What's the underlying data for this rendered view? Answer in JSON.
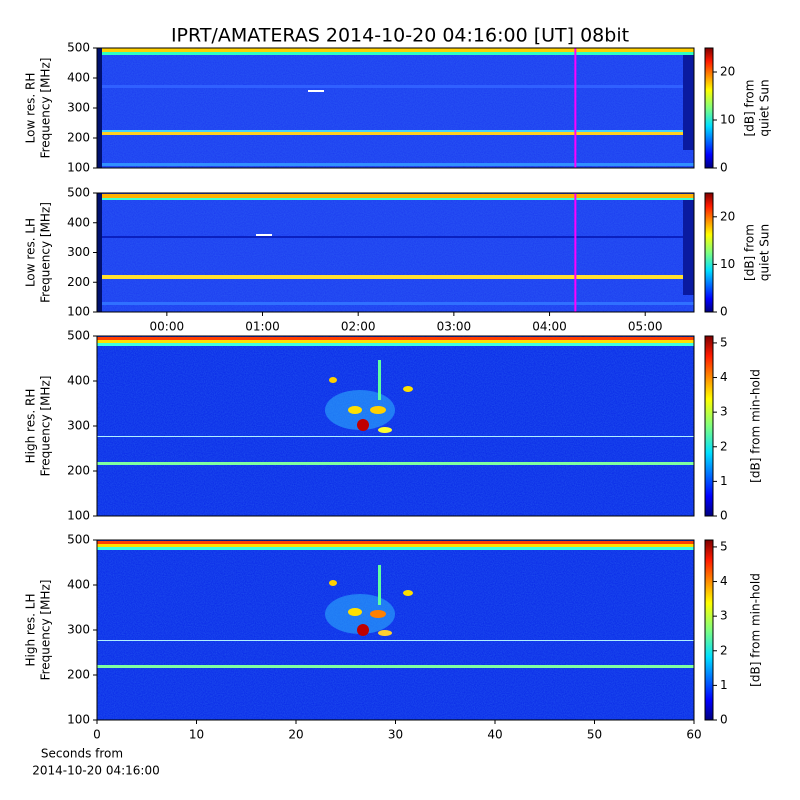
{
  "title": "IPRT/AMATERAS 2014-10-20 04:16:00 [UT]   08bit",
  "chart_data": [
    {
      "type": "heatmap",
      "ylabel": [
        "Low res. RH",
        "Frequency [MHz]"
      ],
      "xlim": [
        -0.73,
        5.51
      ],
      "ylim": [
        100,
        500
      ],
      "yticks": [
        100,
        200,
        300,
        400,
        500
      ],
      "cursor": 4.27,
      "cursor_color": "#ff00ff",
      "clim": [
        0,
        25
      ],
      "cticks": [
        0,
        10,
        20
      ],
      "clabel": [
        "[dB] from",
        "quiet Sun"
      ]
    },
    {
      "type": "heatmap",
      "ylabel": [
        "Low res. LH",
        "Frequency [MHz]"
      ],
      "xlim": [
        -0.73,
        5.51
      ],
      "ylim": [
        100,
        500
      ],
      "yticks": [
        100,
        200,
        300,
        400,
        500
      ],
      "xticks": [
        {
          "value": 0,
          "label": "00:00"
        },
        {
          "value": 1,
          "label": "01:00"
        },
        {
          "value": 2,
          "label": "02:00"
        },
        {
          "value": 3,
          "label": "03:00"
        },
        {
          "value": 4,
          "label": "04:00"
        },
        {
          "value": 5,
          "label": "05:00"
        }
      ],
      "cursor": 4.27,
      "cursor_color": "#ff00ff",
      "clim": [
        0,
        25
      ],
      "cticks": [
        0,
        10,
        20
      ],
      "clabel": [
        "[dB] from",
        "quiet Sun"
      ]
    },
    {
      "type": "heatmap",
      "ylabel": [
        "High res. RH",
        "Frequency [MHz]"
      ],
      "xlim": [
        0,
        60
      ],
      "ylim": [
        100,
        500
      ],
      "yticks": [
        100,
        200,
        300,
        400,
        500
      ],
      "clim": [
        0,
        5.2
      ],
      "cticks": [
        0,
        1,
        2,
        3,
        4,
        5
      ],
      "clabel": [
        "[dB] from min-hold"
      ]
    },
    {
      "type": "heatmap",
      "ylabel": [
        "High res. LH",
        "Frequency [MHz]"
      ],
      "xlim": [
        0,
        60
      ],
      "ylim": [
        100,
        500
      ],
      "yticks": [
        100,
        200,
        300,
        400,
        500
      ],
      "xticks": [
        0,
        10,
        20,
        30,
        40,
        50,
        60
      ],
      "xlabel": [
        "Seconds from",
        "2014-10-20 04:16:00"
      ],
      "clim": [
        0,
        5.2
      ],
      "cticks": [
        0,
        1,
        2,
        3,
        4,
        5
      ],
      "clabel": [
        "[dB] from min-hold"
      ]
    }
  ]
}
